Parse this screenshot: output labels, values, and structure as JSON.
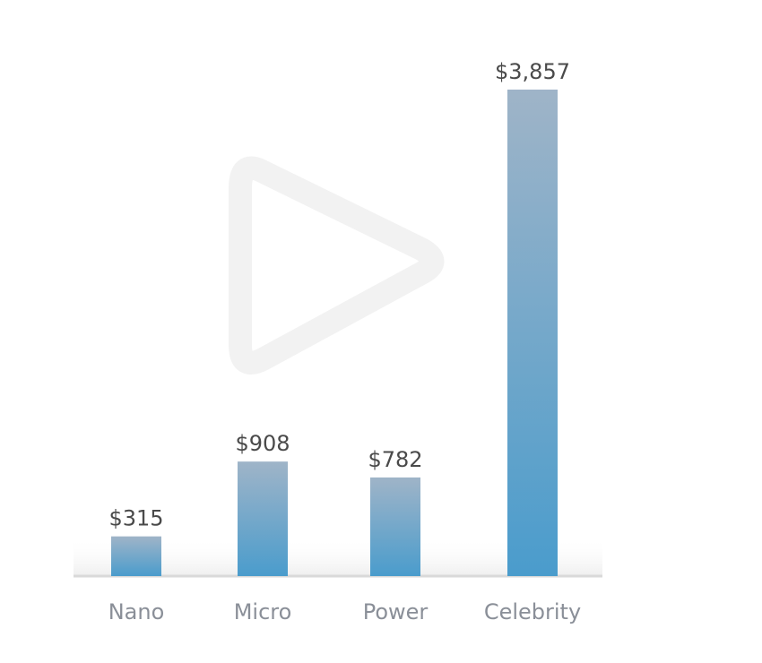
{
  "chart_data": {
    "type": "bar",
    "categories": [
      "Nano",
      "Micro",
      "Power",
      "Celebrity"
    ],
    "values": [
      315,
      908,
      782,
      3857
    ],
    "value_labels": [
      "$315",
      "$908",
      "$782",
      "$3,857"
    ],
    "ylim": [
      0,
      3857
    ],
    "grid": false,
    "title": "",
    "xlabel": "",
    "ylabel": ""
  },
  "overlay": {
    "icon": "play-icon"
  },
  "colors": {
    "bar_top": "#9fb4c8",
    "bar_bottom": "#4a9ccc",
    "baseline": "#d9d9d9",
    "value_text": "#4a4a4a",
    "tick_text": "#8a8f98",
    "play_icon": "#f2f2f2"
  }
}
